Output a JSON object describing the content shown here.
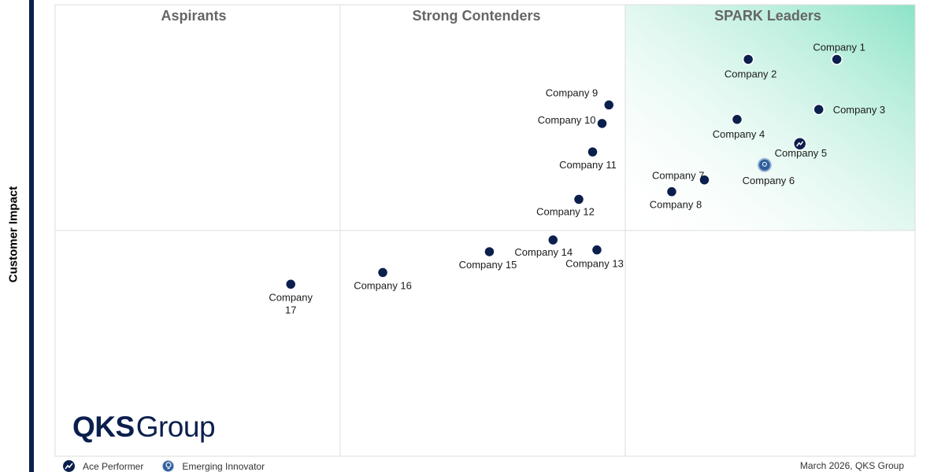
{
  "y_axis_label": "Customer Impact",
  "brand": {
    "bold": "QKS",
    "light": "Group"
  },
  "footer_note": "March 2026, QKS Group",
  "legend": [
    {
      "label": "Ace Performer",
      "icon": "trend-icon"
    },
    {
      "label": "Emerging Innovator",
      "icon": "lightbulb-icon"
    }
  ],
  "colors": {
    "point": "#0b1f4d",
    "leader_gradient": "#8fe3c8",
    "quadrant_title": "#666666",
    "axis_bar": "#0b1f4d"
  },
  "chart_data": {
    "type": "scatter",
    "title": "",
    "ylabel": "Customer Impact",
    "xlabel": "",
    "xlim": [
      0,
      100
    ],
    "ylim": [
      0,
      100
    ],
    "quadrants": [
      "Aspirants",
      "Strong Contenders",
      "SPARK Leaders"
    ],
    "points": [
      {
        "label": "Company 1",
        "x": 90.9,
        "y": 87.9,
        "badge": ""
      },
      {
        "label": "Company 2",
        "x": 80.6,
        "y": 87.9,
        "badge": ""
      },
      {
        "label": "Company 3",
        "x": 88.8,
        "y": 76.8,
        "badge": ""
      },
      {
        "label": "Company 4",
        "x": 79.3,
        "y": 74.6,
        "badge": ""
      },
      {
        "label": "Company 5",
        "x": 86.6,
        "y": 69.2,
        "badge": "ace"
      },
      {
        "label": "Company 6",
        "x": 82.5,
        "y": 64.5,
        "badge": "innovator"
      },
      {
        "label": "Company 7",
        "x": 75.5,
        "y": 61.2,
        "badge": ""
      },
      {
        "label": "Company 8",
        "x": 71.7,
        "y": 58.6,
        "badge": ""
      },
      {
        "label": "Company 9",
        "x": 64.4,
        "y": 77.8,
        "badge": ""
      },
      {
        "label": "Company 10",
        "x": 63.6,
        "y": 73.7,
        "badge": ""
      },
      {
        "label": "Company 11",
        "x": 62.5,
        "y": 67.4,
        "badge": ""
      },
      {
        "label": "Company 12",
        "x": 60.9,
        "y": 56.9,
        "badge": ""
      },
      {
        "label": "Company 13",
        "x": 63.0,
        "y": 45.7,
        "badge": ""
      },
      {
        "label": "Company 14",
        "x": 57.9,
        "y": 47.9,
        "badge": ""
      },
      {
        "label": "Company 15",
        "x": 50.5,
        "y": 45.3,
        "badge": ""
      },
      {
        "label": "Company 16",
        "x": 38.1,
        "y": 40.7,
        "badge": ""
      },
      {
        "label": "Company 17",
        "x": 27.4,
        "y": 38.1,
        "badge": ""
      }
    ]
  }
}
